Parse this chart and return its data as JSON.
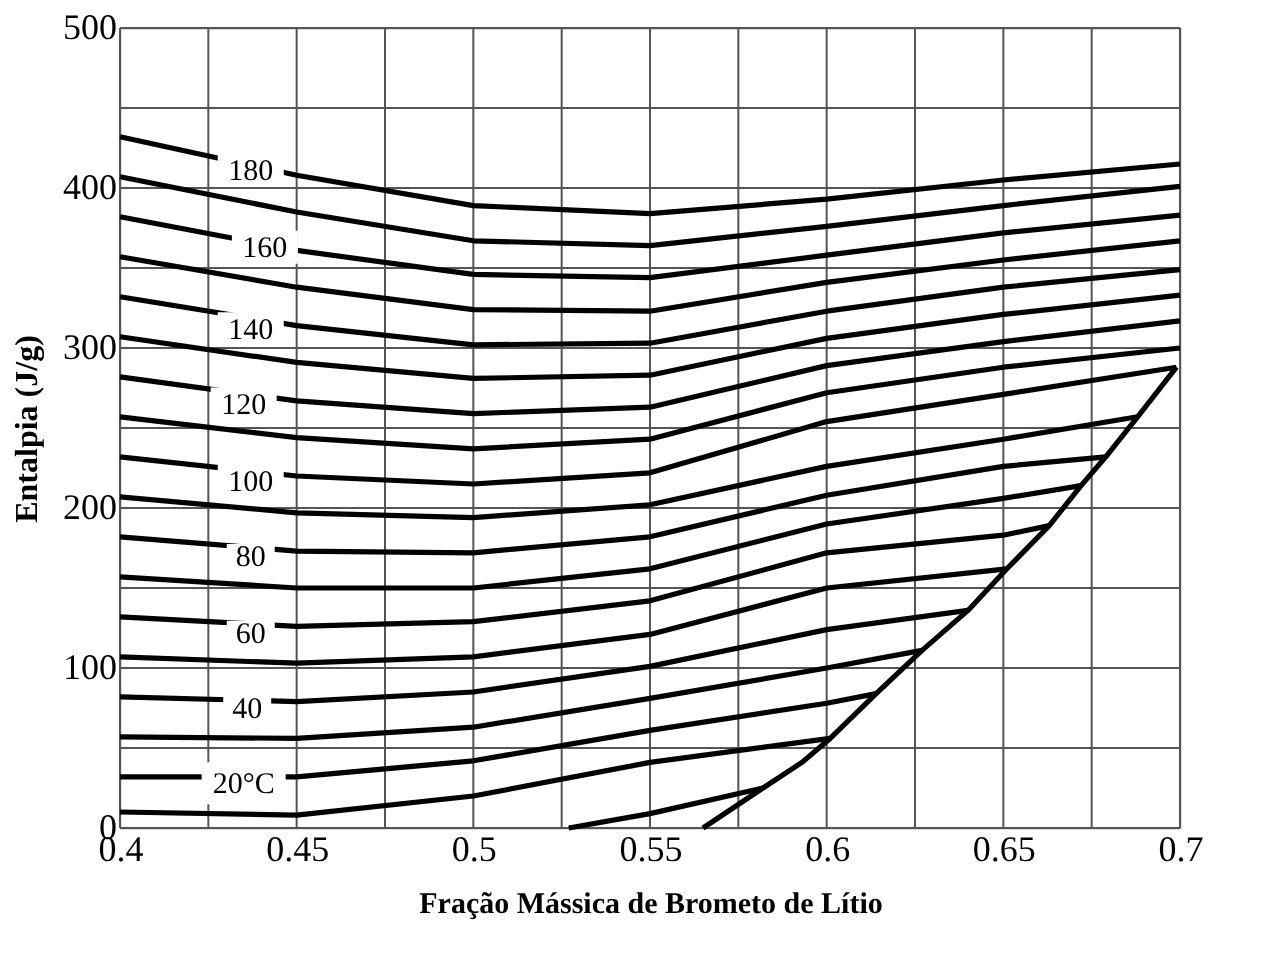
{
  "chart_data": {
    "type": "line",
    "xlabel": "Fração Mássica de Brometo de Lítio",
    "ylabel": "Entalpia (J/g)",
    "xlim": [
      0.4,
      0.7
    ],
    "ylim": [
      0,
      500
    ],
    "xticks": [
      0.4,
      {
        "value": 0.425,
        "label": null
      },
      0.45,
      {
        "value": 0.475,
        "label": null
      },
      0.5,
      {
        "value": 0.525,
        "label": null
      },
      0.55,
      {
        "value": 0.575,
        "label": null
      },
      0.6,
      {
        "value": 0.625,
        "label": null
      },
      0.65,
      {
        "value": 0.675,
        "label": null
      },
      0.7
    ],
    "yticks": [
      0,
      {
        "value": 50,
        "label": null
      },
      100,
      {
        "value": 150,
        "label": null
      },
      200,
      {
        "value": 250,
        "label": null
      },
      300,
      {
        "value": 350,
        "label": null
      },
      400,
      {
        "value": 450,
        "label": null
      },
      500
    ],
    "grid": true,
    "legend": false,
    "marker": "none",
    "line_style": "solid",
    "series": [
      {
        "color": "#000000",
        "x": [
          0.4,
          0.45,
          0.5,
          0.55,
          0.6,
          0.65,
          0.7
        ],
        "values": [
          432,
          408,
          389,
          384,
          393,
          405,
          415
        ]
      },
      {
        "color": "#000000",
        "x": [
          0.4,
          0.45,
          0.5,
          0.55,
          0.6,
          0.65,
          0.7
        ],
        "values": [
          407,
          385,
          367,
          364,
          376,
          389,
          401
        ]
      },
      {
        "color": "#000000",
        "x": [
          0.4,
          0.45,
          0.5,
          0.55,
          0.6,
          0.65,
          0.7
        ],
        "values": [
          382,
          361,
          346,
          344,
          358,
          372,
          383
        ]
      },
      {
        "color": "#000000",
        "x": [
          0.4,
          0.45,
          0.5,
          0.55,
          0.6,
          0.65,
          0.7
        ],
        "values": [
          357,
          338,
          324,
          323,
          341,
          355,
          367
        ]
      },
      {
        "color": "#000000",
        "x": [
          0.4,
          0.45,
          0.5,
          0.55,
          0.6,
          0.65,
          0.7
        ],
        "values": [
          332,
          314,
          302,
          303,
          323,
          338,
          349
        ]
      },
      {
        "color": "#000000",
        "x": [
          0.4,
          0.45,
          0.5,
          0.55,
          0.6,
          0.65,
          0.7
        ],
        "values": [
          307,
          291,
          281,
          283,
          306,
          321,
          333
        ]
      },
      {
        "color": "#000000",
        "x": [
          0.4,
          0.45,
          0.5,
          0.55,
          0.6,
          0.65,
          0.7
        ],
        "values": [
          282,
          267,
          259,
          263,
          289,
          304,
          317
        ]
      },
      {
        "color": "#000000",
        "x": [
          0.4,
          0.45,
          0.5,
          0.55,
          0.6,
          0.65,
          0.7
        ],
        "values": [
          257,
          244,
          237,
          243,
          272,
          288,
          300
        ]
      },
      {
        "color": "#000000",
        "x": [
          0.4,
          0.45,
          0.5,
          0.55,
          0.6,
          0.65,
          0.699
        ],
        "values": [
          232,
          220,
          215,
          222,
          254,
          271,
          288
        ]
      },
      {
        "color": "#000000",
        "x": [
          0.4,
          0.45,
          0.5,
          0.55,
          0.6,
          0.65,
          0.688
        ],
        "values": [
          207,
          197,
          194,
          202,
          226,
          243,
          257
        ]
      },
      {
        "color": "#000000",
        "x": [
          0.4,
          0.45,
          0.5,
          0.55,
          0.6,
          0.65,
          0.679
        ],
        "values": [
          182,
          173,
          172,
          182,
          208,
          226,
          232
        ]
      },
      {
        "color": "#000000",
        "x": [
          0.4,
          0.45,
          0.5,
          0.55,
          0.6,
          0.65,
          0.672
        ],
        "values": [
          157,
          150,
          150,
          162,
          190,
          206,
          214
        ]
      },
      {
        "color": "#000000",
        "x": [
          0.4,
          0.45,
          0.5,
          0.55,
          0.6,
          0.65,
          0.663
        ],
        "values": [
          132,
          126,
          129,
          142,
          172,
          183,
          189
        ]
      },
      {
        "color": "#000000",
        "x": [
          0.4,
          0.45,
          0.5,
          0.55,
          0.6,
          0.651
        ],
        "values": [
          107,
          103,
          107,
          121,
          150,
          162
        ]
      },
      {
        "color": "#000000",
        "x": [
          0.4,
          0.45,
          0.5,
          0.55,
          0.6,
          0.64
        ],
        "values": [
          82,
          79,
          85,
          101,
          124,
          136
        ]
      },
      {
        "color": "#000000",
        "x": [
          0.4,
          0.45,
          0.5,
          0.55,
          0.6,
          0.627
        ],
        "values": [
          57,
          56,
          63,
          81,
          100,
          111
        ]
      },
      {
        "color": "#000000",
        "x": [
          0.4,
          0.45,
          0.5,
          0.55,
          0.6,
          0.614
        ],
        "values": [
          32,
          32,
          42,
          61,
          78,
          84
        ]
      },
      {
        "color": "#000000",
        "x": [
          0.4,
          0.45,
          0.5,
          0.55,
          0.601
        ],
        "values": [
          10,
          8,
          20,
          41,
          56
        ]
      },
      {
        "color": "#000000",
        "x": [
          0.527,
          0.55,
          0.582
        ],
        "values": [
          0,
          9,
          25
        ]
      },
      {
        "color": "#000000",
        "x": [
          0.565,
          0.582,
          0.593,
          0.601,
          0.614,
          0.627,
          0.64,
          0.651,
          0.663,
          0.672,
          0.679,
          0.688,
          0.699
        ],
        "values": [
          0,
          25,
          41,
          56,
          84,
          111,
          136,
          162,
          189,
          214,
          232,
          257,
          288
        ]
      }
    ],
    "annotations": [
      {
        "text": "180",
        "x": 0.437,
        "y": 411
      },
      {
        "text": "160",
        "x": 0.441,
        "y": 363
      },
      {
        "text": "140",
        "x": 0.437,
        "y": 312
      },
      {
        "text": "120",
        "x": 0.435,
        "y": 265
      },
      {
        "text": "100",
        "x": 0.437,
        "y": 217
      },
      {
        "text": "80",
        "x": 0.437,
        "y": 170
      },
      {
        "text": "60",
        "x": 0.437,
        "y": 122
      },
      {
        "text": "40",
        "x": 0.436,
        "y": 75
      },
      {
        "text": "20°C",
        "x": 0.435,
        "y": 28
      }
    ]
  }
}
